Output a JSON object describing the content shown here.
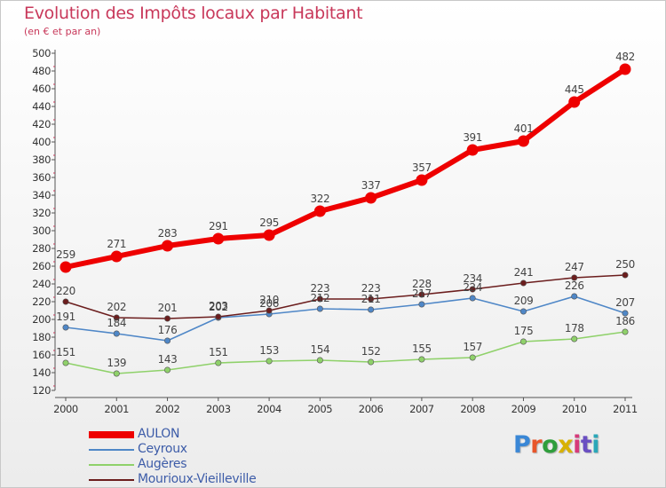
{
  "header": {
    "title": "Evolution des Impôts locaux par Habitant",
    "subtitle": "(en € et par an)"
  },
  "logo": {
    "text": "Proxiti",
    "colors": [
      "#3a87d6",
      "#e8552a",
      "#2f9e3c",
      "#d8b100",
      "#d63a7a",
      "#6a4fc2",
      "#2aa7b8"
    ]
  },
  "colors": {
    "title": "#c8385a",
    "legend_text": "#3d5ca8",
    "axis": "#555555"
  },
  "chart_data": {
    "type": "line",
    "title": "Evolution des Impôts locaux par Habitant",
    "subtitle": "(en € et par an)",
    "xlabel": "",
    "ylabel": "",
    "x": [
      "2000",
      "2001",
      "2002",
      "2003",
      "2004",
      "2005",
      "2006",
      "2007",
      "2008",
      "2009",
      "2010",
      "2011"
    ],
    "ylim": [
      120,
      500
    ],
    "yticks": [
      120,
      140,
      160,
      180,
      200,
      220,
      240,
      260,
      280,
      300,
      320,
      340,
      360,
      380,
      400,
      420,
      440,
      460,
      480,
      500
    ],
    "grid": false,
    "legend_position": "bottom-left",
    "series": [
      {
        "name": "AULON",
        "color": "#ee0000",
        "width": "thick",
        "values": [
          259,
          271,
          283,
          291,
          295,
          322,
          337,
          357,
          391,
          401,
          445,
          482
        ]
      },
      {
        "name": "Ceyroux",
        "color": "#4f87c7",
        "width": "thin",
        "values": [
          191,
          184,
          176,
          202,
          206,
          212,
          211,
          217,
          224,
          209,
          226,
          207
        ]
      },
      {
        "name": "Augères",
        "color": "#8fd16a",
        "width": "thin",
        "values": [
          151,
          139,
          143,
          151,
          153,
          154,
          152,
          155,
          157,
          175,
          178,
          186
        ]
      },
      {
        "name": "Mourioux-Vieilleville",
        "color": "#6b1d1d",
        "width": "thin",
        "values": [
          220,
          202,
          201,
          203,
          210,
          223,
          223,
          228,
          234,
          241,
          247,
          250
        ]
      }
    ]
  }
}
